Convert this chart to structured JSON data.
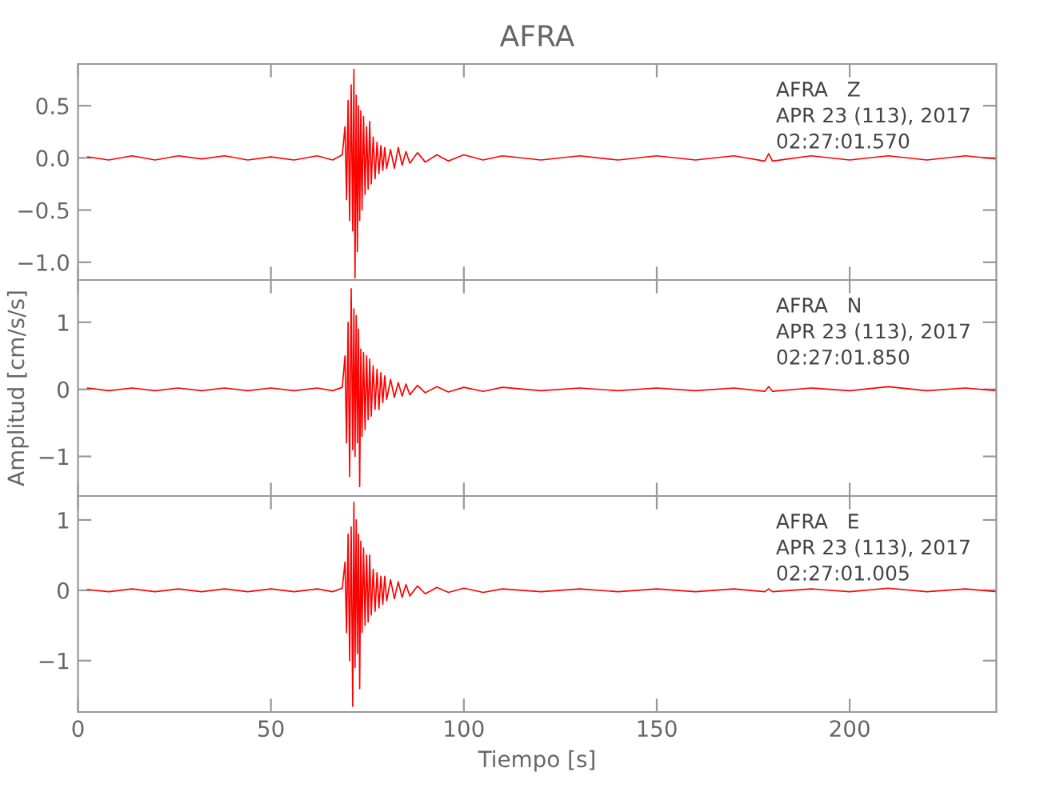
{
  "chart_data": [
    {
      "type": "line",
      "title": "AFRA",
      "annotations": [
        "AFRA   Z",
        "APR 23 (113), 2017",
        "02:27:01.570"
      ],
      "tick_labels": "y",
      "grid": false,
      "legend": false,
      "xlim": [
        0,
        238
      ],
      "xticks": [
        {
          "value": 0,
          "label": null
        },
        {
          "value": 50,
          "label": null
        },
        {
          "value": 100,
          "label": null
        },
        {
          "value": 150,
          "label": null
        },
        {
          "value": 200,
          "label": null
        }
      ],
      "ylim": [
        -1.17,
        0.9
      ],
      "yticks": [
        {
          "value": -1.0,
          "label": "−1.0"
        },
        {
          "value": -0.5,
          "label": "−0.5"
        },
        {
          "value": 0.0,
          "label": "0.0"
        },
        {
          "value": 0.5,
          "label": "0.5"
        }
      ],
      "series": [
        {
          "color": "#ff0000",
          "x": [
            2.5,
            8,
            14,
            20,
            26,
            32,
            38,
            44,
            50,
            56,
            62,
            66,
            68.5,
            69.2,
            69.6,
            70,
            70.4,
            70.8,
            71.2,
            71.5,
            71.8,
            72.1,
            72.4,
            72.7,
            73,
            73.3,
            73.6,
            74,
            74.4,
            74.8,
            75.2,
            75.6,
            76,
            76.5,
            77,
            77.5,
            78,
            78.5,
            79,
            79.5,
            80,
            81,
            82,
            83,
            84,
            85,
            86,
            88,
            90,
            93,
            96,
            100,
            105,
            110,
            120,
            130,
            140,
            150,
            160,
            170,
            178,
            179,
            180,
            190,
            200,
            210,
            220,
            230,
            238
          ],
          "values": [
            0.01,
            -0.02,
            0.02,
            -0.02,
            0.02,
            -0.01,
            0.02,
            -0.02,
            0.01,
            -0.02,
            0.02,
            -0.02,
            0.03,
            0.3,
            -0.4,
            0.55,
            -0.6,
            0.7,
            -0.7,
            0.85,
            -1.15,
            0.6,
            -0.9,
            0.5,
            -0.6,
            0.45,
            -0.5,
            0.4,
            -0.35,
            0.3,
            -0.3,
            0.35,
            -0.25,
            0.2,
            -0.2,
            0.15,
            -0.15,
            0.12,
            -0.12,
            0.1,
            -0.1,
            0.08,
            -0.1,
            0.1,
            -0.07,
            0.06,
            -0.05,
            0.05,
            -0.04,
            0.03,
            -0.03,
            0.03,
            -0.02,
            0.02,
            -0.02,
            0.02,
            -0.02,
            0.02,
            -0.02,
            0.02,
            -0.03,
            0.04,
            -0.03,
            0.02,
            -0.02,
            0.02,
            -0.02,
            0.02,
            -0.01
          ]
        }
      ]
    },
    {
      "type": "line",
      "ylabel": "Amplitud [cm/s/s]",
      "annotations": [
        "AFRA   N",
        "APR 23 (113), 2017",
        "02:27:01.850"
      ],
      "tick_labels": "y",
      "grid": false,
      "legend": false,
      "xlim": [
        0,
        238
      ],
      "xticks": [
        {
          "value": 0,
          "label": null
        },
        {
          "value": 50,
          "label": null
        },
        {
          "value": 100,
          "label": null
        },
        {
          "value": 150,
          "label": null
        },
        {
          "value": 200,
          "label": null
        }
      ],
      "ylim": [
        -1.59,
        1.63
      ],
      "yticks": [
        {
          "value": -1,
          "label": "−1"
        },
        0,
        1
      ],
      "series": [
        {
          "color": "#ff0000",
          "x": [
            2.5,
            8,
            14,
            20,
            26,
            32,
            38,
            44,
            50,
            56,
            62,
            66,
            68.5,
            69.2,
            69.6,
            70,
            70.4,
            70.8,
            71.2,
            71.5,
            71.8,
            72.1,
            72.4,
            72.7,
            73,
            73.3,
            73.6,
            74,
            74.4,
            74.8,
            75.2,
            75.6,
            76,
            76.5,
            77,
            77.5,
            78,
            78.5,
            79,
            79.5,
            80,
            81,
            82,
            83,
            84,
            85,
            86,
            88,
            90,
            93,
            96,
            100,
            105,
            110,
            120,
            130,
            140,
            150,
            160,
            170,
            178,
            179,
            180,
            190,
            200,
            210,
            220,
            230,
            238
          ],
          "values": [
            0.02,
            -0.02,
            0.02,
            -0.02,
            0.02,
            -0.02,
            0.02,
            -0.02,
            0.02,
            -0.02,
            0.02,
            -0.02,
            0.03,
            0.5,
            -0.8,
            1.0,
            -1.3,
            1.5,
            -0.9,
            1.2,
            -1.0,
            1.1,
            -0.8,
            0.9,
            -1.45,
            0.6,
            -0.7,
            0.55,
            -0.6,
            0.5,
            -0.45,
            0.45,
            -0.4,
            0.35,
            -0.3,
            0.3,
            -0.3,
            0.25,
            -0.2,
            0.2,
            -0.15,
            0.15,
            -0.12,
            0.1,
            -0.1,
            0.08,
            -0.08,
            0.06,
            -0.05,
            0.04,
            -0.04,
            0.03,
            -0.03,
            0.03,
            -0.02,
            0.02,
            -0.02,
            0.02,
            -0.02,
            0.02,
            -0.03,
            0.04,
            -0.03,
            0.02,
            -0.02,
            0.04,
            -0.02,
            0.02,
            -0.02
          ]
        }
      ]
    },
    {
      "type": "line",
      "xlabel": "Tiempo [s]",
      "annotations": [
        "AFRA   E",
        "APR 23 (113), 2017",
        "02:27:01.005"
      ],
      "grid": false,
      "legend": false,
      "xlim": [
        0,
        238
      ],
      "xticks": [
        0,
        50,
        100,
        150,
        200
      ],
      "ylim": [
        -1.73,
        1.34
      ],
      "yticks": [
        {
          "value": -1,
          "label": "−1"
        },
        0,
        1
      ],
      "series": [
        {
          "color": "#ff0000",
          "x": [
            2.5,
            8,
            14,
            20,
            26,
            32,
            38,
            44,
            50,
            56,
            62,
            66,
            68.5,
            69.2,
            69.6,
            70,
            70.4,
            70.8,
            71.2,
            71.5,
            71.8,
            72.1,
            72.4,
            72.7,
            73,
            73.3,
            73.6,
            74,
            74.4,
            74.8,
            75.2,
            75.6,
            76,
            76.5,
            77,
            77.5,
            78,
            78.5,
            79,
            79.5,
            80,
            81,
            82,
            83,
            84,
            85,
            86,
            88,
            90,
            93,
            96,
            100,
            105,
            110,
            120,
            130,
            140,
            150,
            160,
            170,
            178,
            179,
            180,
            190,
            200,
            210,
            220,
            230,
            238
          ],
          "values": [
            0.01,
            -0.02,
            0.02,
            -0.02,
            0.02,
            -0.02,
            0.02,
            -0.02,
            0.02,
            -0.02,
            0.02,
            -0.02,
            0.03,
            0.4,
            -0.6,
            0.8,
            -1.0,
            0.9,
            -1.65,
            1.25,
            -1.1,
            1.0,
            -0.9,
            0.8,
            -1.4,
            0.7,
            -0.6,
            0.6,
            -0.5,
            0.5,
            -0.45,
            0.5,
            -0.35,
            0.3,
            -0.3,
            0.25,
            -0.25,
            0.2,
            -0.2,
            0.2,
            -0.15,
            0.15,
            -0.12,
            0.12,
            -0.1,
            0.08,
            -0.08,
            0.06,
            -0.05,
            0.04,
            -0.03,
            0.03,
            -0.03,
            0.02,
            -0.02,
            0.02,
            -0.02,
            0.02,
            -0.02,
            0.02,
            -0.02,
            0.02,
            -0.02,
            0.02,
            -0.02,
            0.03,
            -0.02,
            0.02,
            -0.02
          ]
        }
      ]
    }
  ]
}
